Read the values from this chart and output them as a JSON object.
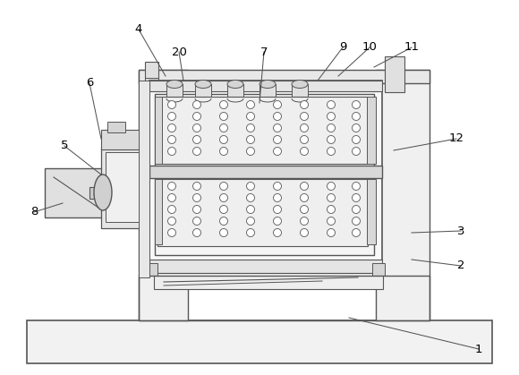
{
  "bg_color": "#ffffff",
  "lc": "#555555",
  "labels_info": [
    [
      1,
      390,
      355,
      535,
      390
    ],
    [
      2,
      460,
      290,
      515,
      297
    ],
    [
      3,
      460,
      260,
      515,
      258
    ],
    [
      4,
      185,
      85,
      155,
      33
    ],
    [
      5,
      113,
      195,
      72,
      163
    ],
    [
      6,
      113,
      155,
      100,
      93
    ],
    [
      7,
      290,
      115,
      295,
      58
    ],
    [
      8,
      70,
      227,
      38,
      237
    ],
    [
      9,
      355,
      90,
      383,
      53
    ],
    [
      10,
      378,
      85,
      413,
      53
    ],
    [
      11,
      418,
      75,
      460,
      53
    ],
    [
      12,
      440,
      168,
      510,
      155
    ],
    [
      20,
      205,
      90,
      200,
      58
    ]
  ]
}
